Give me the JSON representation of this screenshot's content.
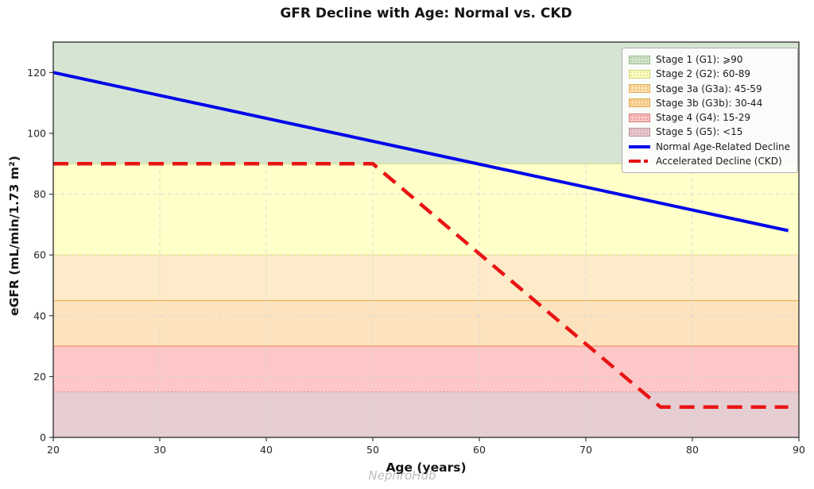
{
  "watermark": "NephroHub",
  "chart_data": {
    "type": "line",
    "title": "GFR Decline with Age: Normal vs. CKD",
    "xlabel": "Age (years)",
    "ylabel": "eGFR (mL/min/1.73 m²)",
    "xlim": [
      20,
      90
    ],
    "ylim": [
      0,
      130
    ],
    "xticks": [
      20,
      30,
      40,
      50,
      60,
      70,
      80,
      90
    ],
    "yticks": [
      0,
      20,
      40,
      60,
      80,
      100,
      120
    ],
    "grid": true,
    "legend_position": "upper right",
    "bands": [
      {
        "id": "stage-5",
        "label": "Stage 5 (G5): <15",
        "from": 0,
        "to": 15,
        "fill": "#e6cdd2",
        "edge": "#e89090",
        "edge_style": "dotted"
      },
      {
        "id": "stage-4",
        "label": "Stage 4 (G4): 15-29",
        "from": 15,
        "to": 30,
        "fill": "#fdc7c7",
        "edge": "#f59a76",
        "edge_style": "solid"
      },
      {
        "id": "stage-3b",
        "label": "Stage 3b (G3b): 30-44",
        "from": 30,
        "to": 45,
        "fill": "#fde3bd",
        "edge": "#f0b45a",
        "edge_style": "solid"
      },
      {
        "id": "stage-3a",
        "label": "Stage 3a (G3a): 45-59",
        "from": 45,
        "to": 60,
        "fill": "#fdebca",
        "edge": "#f2e383",
        "edge_style": "solid"
      },
      {
        "id": "stage-2",
        "label": "Stage 2 (G2): 60-89",
        "from": 60,
        "to": 90,
        "fill": "#feffc9",
        "edge": "#d6de96",
        "edge_style": "solid"
      },
      {
        "id": "stage-1",
        "label": "Stage 1 (G1): ⩾90",
        "from": 90,
        "to": 130,
        "fill": "#d6e5d2",
        "edge": null,
        "edge_style": null
      }
    ],
    "series": [
      {
        "id": "normal-decline",
        "name": "Normal Age-Related Decline",
        "color": "#0006ea",
        "style": "solid",
        "width": 4,
        "points": [
          [
            20,
            120
          ],
          [
            89,
            68
          ]
        ]
      },
      {
        "id": "ckd-decline",
        "name": "Accelerated Decline (CKD)",
        "color": "#ea1414",
        "style": "dashed",
        "width": 4.5,
        "points": [
          [
            20,
            90
          ],
          [
            50,
            90
          ],
          [
            77,
            10
          ],
          [
            89,
            10
          ]
        ]
      }
    ]
  },
  "legend": {
    "items": [
      {
        "type": "patch",
        "label": "Stage 1 (G1): ⩾90",
        "fill": "#d3e4cd",
        "edge": "#93b889"
      },
      {
        "type": "patch",
        "label": "Stage 2 (G2): 60-89",
        "fill": "#fdfdc4",
        "edge": "#d2d26c"
      },
      {
        "type": "patch",
        "label": "Stage 3a (G3a): 45-59",
        "fill": "#fbdfae",
        "edge": "#e3a94f"
      },
      {
        "type": "patch",
        "label": "Stage 3b (G3b): 30-44",
        "fill": "#fbd8a2",
        "edge": "#dfa347"
      },
      {
        "type": "patch",
        "label": "Stage 4 (G4): 15-29",
        "fill": "#fac4c4",
        "edge": "#db7b7b"
      },
      {
        "type": "patch",
        "label": "Stage 5 (G5): <15",
        "fill": "#e9cad0",
        "edge": "#ba8d96"
      },
      {
        "type": "line",
        "label": "Normal Age-Related Decline",
        "color": "#0006ea"
      },
      {
        "type": "line-dashed",
        "label": "Accelerated Decline (CKD)",
        "color": "#ea1414"
      }
    ]
  }
}
